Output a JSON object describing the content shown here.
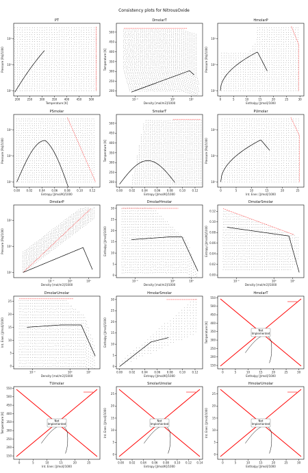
{
  "figure": {
    "suptitle": "Consistency plots for NitrousOxide"
  },
  "colors": {
    "points": "#000000",
    "limit": "#ff0000",
    "curve": "#000000"
  },
  "chart_data": [
    {
      "id": "PT",
      "type": "scatter",
      "title": "PT",
      "xlabel": "Temperature [K]",
      "ylabel": "Pressure [Pa]/1000",
      "x_ticks": [
        {
          "v": 200,
          "l": "200"
        },
        {
          "v": 250,
          "l": "250"
        },
        {
          "v": 300,
          "l": "300"
        },
        {
          "v": 350,
          "l": "350"
        },
        {
          "v": 400,
          "l": "400"
        },
        {
          "v": 450,
          "l": "450"
        },
        {
          "v": 500,
          "l": "500"
        }
      ],
      "y_ticks": [
        {
          "v": 2,
          "l": "10²"
        },
        {
          "v": 3,
          "l": "10³"
        },
        {
          "v": 4,
          "l": "10⁴"
        }
      ],
      "xlim": [
        185,
        535
      ],
      "ylim": [
        1.8,
        4.6
      ],
      "ylog": true,
      "shape": "pt",
      "implemented": true
    },
    {
      "id": "DmolarT",
      "type": "scatter",
      "title": "DmolarT",
      "xlabel": "Density [mol/m3]/1000",
      "ylabel": "Temperature [K]",
      "x_ticks": [
        {
          "v": -2,
          "l": "10⁻²"
        },
        {
          "v": 0,
          "l": "10⁰"
        },
        {
          "v": 1,
          "l": "10¹"
        }
      ],
      "y_ticks": [
        {
          "v": 200,
          "l": "200"
        },
        {
          "v": 250,
          "l": "250"
        },
        {
          "v": 300,
          "l": "300"
        },
        {
          "v": 350,
          "l": "350"
        },
        {
          "v": 400,
          "l": "400"
        },
        {
          "v": 450,
          "l": "450"
        },
        {
          "v": 500,
          "l": "500"
        }
      ],
      "xlim": [
        -3,
        1.6
      ],
      "ylim": [
        175,
        545
      ],
      "xlog": true,
      "shape": "dt",
      "implemented": true
    },
    {
      "id": "HmolarP",
      "type": "scatter",
      "title": "HmolarP",
      "xlabel": "Enthalpy [J/mol]/1000",
      "ylabel": "Pressure [Pa]/1000",
      "x_ticks": [
        {
          "v": 0,
          "l": "0"
        },
        {
          "v": 5,
          "l": "5"
        },
        {
          "v": 10,
          "l": "10"
        },
        {
          "v": 15,
          "l": "15"
        },
        {
          "v": 20,
          "l": "20"
        },
        {
          "v": 25,
          "l": "25"
        },
        {
          "v": 30,
          "l": "30"
        }
      ],
      "y_ticks": [
        {
          "v": 2,
          "l": "10²"
        },
        {
          "v": 3,
          "l": "10³"
        },
        {
          "v": 4,
          "l": "10⁴"
        }
      ],
      "xlim": [
        -1,
        31.5
      ],
      "ylim": [
        1.8,
        4.6
      ],
      "ylog": true,
      "shape": "hp",
      "implemented": true
    },
    {
      "id": "PSmolar",
      "type": "scatter",
      "title": "PSmolar",
      "xlabel": "Entropy [J/mol/K]/1000",
      "ylabel": "Pressure [Pa]/1000",
      "x_ticks": [
        {
          "v": 0,
          "l": "0.00"
        },
        {
          "v": 0.02,
          "l": "0.02"
        },
        {
          "v": 0.04,
          "l": "0.04"
        },
        {
          "v": 0.06,
          "l": "0.06"
        },
        {
          "v": 0.08,
          "l": "0.08"
        },
        {
          "v": 0.1,
          "l": "0.10"
        },
        {
          "v": 0.12,
          "l": "0.12"
        }
      ],
      "y_ticks": [
        {
          "v": 2,
          "l": "10²"
        },
        {
          "v": 3,
          "l": "10³"
        },
        {
          "v": 4,
          "l": "10⁴"
        }
      ],
      "xlim": [
        -0.005,
        0.132
      ],
      "ylim": [
        1.8,
        4.6
      ],
      "ylog": true,
      "shape": "sp",
      "implemented": true
    },
    {
      "id": "SmolarT",
      "type": "scatter",
      "title": "SmolarT",
      "xlabel": "Entropy [J/mol/K]/1000",
      "ylabel": "Temperature [K]",
      "x_ticks": [
        {
          "v": 0,
          "l": "0.00"
        },
        {
          "v": 0.02,
          "l": "0.02"
        },
        {
          "v": 0.04,
          "l": "0.04"
        },
        {
          "v": 0.06,
          "l": "0.06"
        },
        {
          "v": 0.08,
          "l": "0.08"
        },
        {
          "v": 0.1,
          "l": "0.10"
        },
        {
          "v": 0.12,
          "l": "0.12"
        }
      ],
      "y_ticks": [
        {
          "v": 200,
          "l": "200"
        },
        {
          "v": 250,
          "l": "250"
        },
        {
          "v": 300,
          "l": "300"
        },
        {
          "v": 350,
          "l": "350"
        },
        {
          "v": 400,
          "l": "400"
        },
        {
          "v": 450,
          "l": "450"
        },
        {
          "v": 500,
          "l": "500"
        }
      ],
      "xlim": [
        -0.005,
        0.132
      ],
      "ylim": [
        175,
        545
      ],
      "shape": "st",
      "implemented": true
    },
    {
      "id": "PUmolar",
      "type": "scatter",
      "title": "PUmolar",
      "xlabel": "Int. Ener. [J/mol]/1000",
      "ylabel": "Pressure [Pa]/1000",
      "x_ticks": [
        {
          "v": 0,
          "l": "0"
        },
        {
          "v": 5,
          "l": "5"
        },
        {
          "v": 10,
          "l": "10"
        },
        {
          "v": 15,
          "l": "15"
        },
        {
          "v": 20,
          "l": "20"
        },
        {
          "v": 25,
          "l": "25"
        }
      ],
      "y_ticks": [
        {
          "v": 2,
          "l": "10²"
        },
        {
          "v": 3,
          "l": "10³"
        },
        {
          "v": 4,
          "l": "10⁴"
        }
      ],
      "xlim": [
        -1,
        27
      ],
      "ylim": [
        1.8,
        4.6
      ],
      "ylog": true,
      "shape": "up",
      "implemented": true
    },
    {
      "id": "DmolarP",
      "type": "scatter",
      "title": "DmolarP",
      "xlabel": "Density [mol/m3]/1000",
      "ylabel": "Pressure [Pa]/1000",
      "x_ticks": [
        {
          "v": -1,
          "l": "10⁻¹"
        },
        {
          "v": 0,
          "l": "10⁰"
        },
        {
          "v": 1,
          "l": "10¹"
        }
      ],
      "y_ticks": [
        {
          "v": 2,
          "l": "10²"
        },
        {
          "v": 3,
          "l": "10³"
        },
        {
          "v": 4,
          "l": "10⁴"
        }
      ],
      "xlim": [
        -3,
        1.6
      ],
      "ylim": [
        1.8,
        4.6
      ],
      "xlog": true,
      "ylog": true,
      "shape": "dp",
      "implemented": true
    },
    {
      "id": "DmolarHmolar",
      "type": "scatter",
      "title": "DmolarHmolar",
      "xlabel": "Density [mol/m3]/1000",
      "ylabel": "Enthalpy [J/mol]/1000",
      "x_ticks": [
        {
          "v": -2,
          "l": "10⁻²"
        },
        {
          "v": 0,
          "l": "10⁰"
        },
        {
          "v": 1,
          "l": "10¹"
        }
      ],
      "y_ticks": [
        {
          "v": 0,
          "l": "0"
        },
        {
          "v": 5,
          "l": "5"
        },
        {
          "v": 10,
          "l": "10"
        },
        {
          "v": 15,
          "l": "15"
        },
        {
          "v": 20,
          "l": "20"
        },
        {
          "v": 25,
          "l": "25"
        },
        {
          "v": 30,
          "l": "30"
        }
      ],
      "xlim": [
        -3,
        1.6
      ],
      "ylim": [
        -1,
        31.5
      ],
      "xlog": true,
      "shape": "dh",
      "implemented": true
    },
    {
      "id": "DmolarSmolar",
      "type": "scatter",
      "title": "DmolarSmolar",
      "xlabel": "Density [mol/m3]/1000",
      "ylabel": "Entropy [J/mol/K]/1000",
      "x_ticks": [
        {
          "v": -2,
          "l": "10⁻²"
        },
        {
          "v": 0,
          "l": "10⁰"
        },
        {
          "v": 1,
          "l": "10¹"
        }
      ],
      "y_ticks": [
        {
          "v": 0,
          "l": "0.00"
        },
        {
          "v": 0.02,
          "l": "0.02"
        },
        {
          "v": 0.04,
          "l": "0.04"
        },
        {
          "v": 0.06,
          "l": "0.06"
        },
        {
          "v": 0.08,
          "l": "0.08"
        },
        {
          "v": 0.1,
          "l": "0.10"
        },
        {
          "v": 0.12,
          "l": "0.12"
        }
      ],
      "xlim": [
        -3,
        1.6
      ],
      "ylim": [
        -0.005,
        0.132
      ],
      "xlog": true,
      "shape": "ds",
      "implemented": true
    },
    {
      "id": "DmolarUmolar",
      "type": "scatter",
      "title": "DmolarUmolar",
      "xlabel": "Density [mol/m3]/1000",
      "ylabel": "Int. Ener. [J/mol]/1000",
      "x_ticks": [
        {
          "v": -2,
          "l": "10⁻²"
        },
        {
          "v": 0,
          "l": "10⁰"
        },
        {
          "v": 1,
          "l": "10¹"
        }
      ],
      "y_ticks": [
        {
          "v": 0,
          "l": "0"
        },
        {
          "v": 5,
          "l": "5"
        },
        {
          "v": 10,
          "l": "10"
        },
        {
          "v": 15,
          "l": "15"
        },
        {
          "v": 20,
          "l": "20"
        },
        {
          "v": 25,
          "l": "25"
        }
      ],
      "xlim": [
        -3,
        1.6
      ],
      "ylim": [
        -1,
        27
      ],
      "xlog": true,
      "shape": "du",
      "implemented": true
    },
    {
      "id": "HmolarSmolar",
      "type": "scatter",
      "title": "HmolarSmolar",
      "xlabel": "Entropy [J/mol/K]/1000",
      "ylabel": "Enthalpy [J/mol]/1000",
      "x_ticks": [
        {
          "v": 0,
          "l": "0.00"
        },
        {
          "v": 0.02,
          "l": "0.02"
        },
        {
          "v": 0.04,
          "l": "0.04"
        },
        {
          "v": 0.06,
          "l": "0.06"
        },
        {
          "v": 0.08,
          "l": "0.08"
        },
        {
          "v": 0.1,
          "l": "0.10"
        },
        {
          "v": 0.12,
          "l": "0.12"
        }
      ],
      "y_ticks": [
        {
          "v": 0,
          "l": "0"
        },
        {
          "v": 5,
          "l": "5"
        },
        {
          "v": 10,
          "l": "10"
        },
        {
          "v": 15,
          "l": "15"
        },
        {
          "v": 20,
          "l": "20"
        },
        {
          "v": 25,
          "l": "25"
        },
        {
          "v": 30,
          "l": "30"
        }
      ],
      "xlim": [
        -0.005,
        0.132
      ],
      "ylim": [
        -1,
        31.5
      ],
      "shape": "sh",
      "implemented": true
    },
    {
      "id": "HmolarT",
      "type": "scatter",
      "title": "HmolarT",
      "xlabel": "Enthalpy [J/mol]/1000",
      "ylabel": "Temperature [K]",
      "x_ticks": [
        {
          "v": 0,
          "l": "0"
        },
        {
          "v": 5,
          "l": "5"
        },
        {
          "v": 10,
          "l": "10"
        },
        {
          "v": 15,
          "l": "15"
        },
        {
          "v": 20,
          "l": "20"
        },
        {
          "v": 25,
          "l": "25"
        },
        {
          "v": 30,
          "l": "30"
        }
      ],
      "y_ticks": [
        {
          "v": 150,
          "l": "150"
        },
        {
          "v": 200,
          "l": "200"
        },
        {
          "v": 250,
          "l": "250"
        },
        {
          "v": 300,
          "l": "300"
        },
        {
          "v": 350,
          "l": "350"
        },
        {
          "v": 400,
          "l": "400"
        },
        {
          "v": 450,
          "l": "450"
        },
        {
          "v": 500,
          "l": "500"
        },
        {
          "v": 550,
          "l": "550"
        }
      ],
      "xlim": [
        -2,
        32
      ],
      "ylim": [
        130,
        560
      ],
      "shape": "ni",
      "implemented": false,
      "note": "Not\nImplemented"
    },
    {
      "id": "TUmolar",
      "type": "scatter",
      "title": "TUmolar",
      "xlabel": "Int. Ener. [J/mol]/1000",
      "ylabel": "Temperature [K]",
      "x_ticks": [
        {
          "v": 0,
          "l": "0"
        },
        {
          "v": 5,
          "l": "5"
        },
        {
          "v": 10,
          "l": "10"
        },
        {
          "v": 15,
          "l": "15"
        },
        {
          "v": 20,
          "l": "20"
        },
        {
          "v": 25,
          "l": "25"
        }
      ],
      "y_ticks": [
        {
          "v": 150,
          "l": "150"
        },
        {
          "v": 200,
          "l": "200"
        },
        {
          "v": 250,
          "l": "250"
        },
        {
          "v": 300,
          "l": "300"
        },
        {
          "v": 350,
          "l": "350"
        },
        {
          "v": 400,
          "l": "400"
        },
        {
          "v": 450,
          "l": "450"
        },
        {
          "v": 500,
          "l": "500"
        },
        {
          "v": 550,
          "l": "550"
        }
      ],
      "xlim": [
        -2,
        29
      ],
      "ylim": [
        130,
        560
      ],
      "shape": "ni",
      "implemented": false,
      "note": "Not\nImplemented"
    },
    {
      "id": "SmolarUmolar",
      "type": "scatter",
      "title": "SmolarUmolar",
      "xlabel": "Entropy [J/mol/K]/1000",
      "ylabel": "Int. Ener. [J/mol]/1000",
      "x_ticks": [
        {
          "v": 0,
          "l": "0.00"
        },
        {
          "v": 0.02,
          "l": "0.02"
        },
        {
          "v": 0.04,
          "l": "0.04"
        },
        {
          "v": 0.06,
          "l": "0.06"
        },
        {
          "v": 0.08,
          "l": "0.08"
        },
        {
          "v": 0.1,
          "l": "0.10"
        },
        {
          "v": 0.12,
          "l": "0.12"
        },
        {
          "v": 0.14,
          "l": "0.14"
        }
      ],
      "y_ticks": [
        {
          "v": 0,
          "l": "0"
        },
        {
          "v": 5,
          "l": "5"
        },
        {
          "v": 10,
          "l": "10"
        },
        {
          "v": 15,
          "l": "15"
        },
        {
          "v": 20,
          "l": "20"
        },
        {
          "v": 25,
          "l": "25"
        }
      ],
      "xlim": [
        -0.008,
        0.145
      ],
      "ylim": [
        -2,
        28
      ],
      "shape": "ni",
      "implemented": false,
      "note": "Not\nImplemented"
    },
    {
      "id": "HmolarUmolar",
      "type": "scatter",
      "title": "HmolarUmolar",
      "xlabel": "Enthalpy [J/mol]/1000",
      "ylabel": "Int. Ener. [J/mol]/1000",
      "x_ticks": [
        {
          "v": 0,
          "l": "0"
        },
        {
          "v": 5,
          "l": "5"
        },
        {
          "v": 10,
          "l": "10"
        },
        {
          "v": 15,
          "l": "15"
        },
        {
          "v": 20,
          "l": "20"
        },
        {
          "v": 25,
          "l": "25"
        },
        {
          "v": 30,
          "l": "30"
        }
      ],
      "y_ticks": [
        {
          "v": 0,
          "l": "0"
        },
        {
          "v": 5,
          "l": "5"
        },
        {
          "v": 10,
          "l": "10"
        },
        {
          "v": 15,
          "l": "15"
        },
        {
          "v": 20,
          "l": "20"
        },
        {
          "v": 25,
          "l": "25"
        }
      ],
      "xlim": [
        -2,
        32
      ],
      "ylim": [
        -2,
        28
      ],
      "shape": "ni",
      "implemented": false,
      "note": "Not\nImplemented"
    }
  ]
}
